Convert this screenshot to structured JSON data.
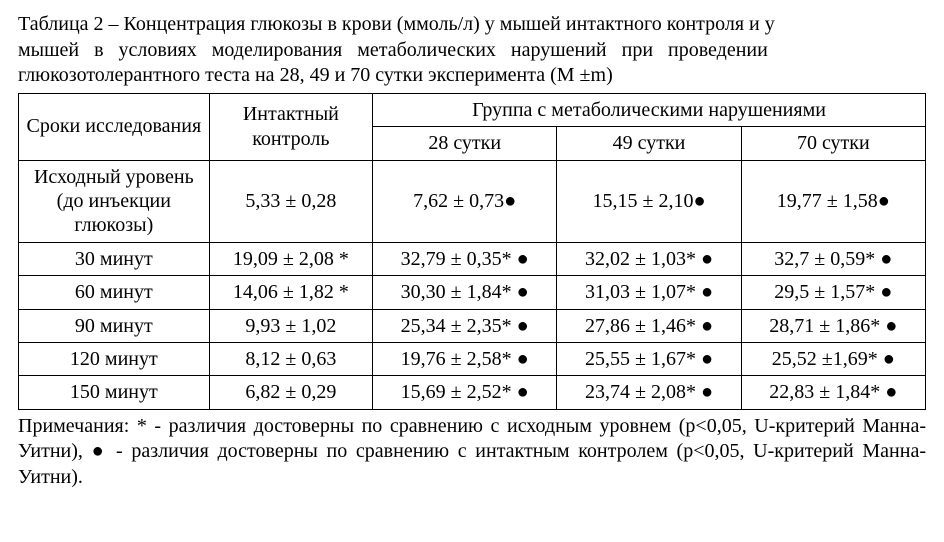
{
  "caption": {
    "part1": "Таблица 2 – Концентрация глюкозы в крови (ммоль/л) у мышей интактного контроля и у ",
    "part2": "мышей в условиях моделирования метаболических нарушений при проведении ",
    "part3": "глюкозотолерантного теста на 28, 49 и 70 сутки эксперимента (M ±m)"
  },
  "table": {
    "header": {
      "col_period": "Сроки исследования",
      "col_intact": "Интактный контроль",
      "col_group": "Группа с метаболическими нарушениями",
      "sub_28": "28 сутки",
      "sub_49": "49 сутки",
      "sub_70": "70 сутки"
    },
    "rows": [
      {
        "label": "Исходный уровень (до инъекции глюкозы)",
        "intact": "5,33 ± 0,28",
        "d28": "7,62 ± 0,73●",
        "d49": "15,15 ± 2,10●",
        "d70": "19,77 ± 1,58●"
      },
      {
        "label": "30 минут",
        "intact": "19,09 ± 2,08 *",
        "d28": "32,79 ± 0,35* ●",
        "d49": "32,02 ± 1,03* ●",
        "d70": "32,7 ± 0,59* ●"
      },
      {
        "label": "60 минут",
        "intact": "14,06 ± 1,82 *",
        "d28": "30,30 ± 1,84* ●",
        "d49": "31,03 ± 1,07* ●",
        "d70": "29,5 ± 1,57* ●"
      },
      {
        "label": "90 минут",
        "intact": "9,93 ± 1,02",
        "d28": "25,34 ± 2,35* ●",
        "d49": "27,86 ± 1,46* ●",
        "d70": "28,71 ± 1,86* ●"
      },
      {
        "label": "120 минут",
        "intact": "8,12 ± 0,63",
        "d28": "19,76 ± 2,58* ●",
        "d49": "25,55 ± 1,67* ●",
        "d70": "25,52 ±1,69* ●"
      },
      {
        "label": "150 минут",
        "intact": "6,82 ± 0,29",
        "d28": "15,69 ± 2,52* ●",
        "d49": "23,74 ± 2,08* ●",
        "d70": "22,83 ± 1,84* ●"
      }
    ]
  },
  "footnotes": "Примечания: * - различия достоверны по сравнению с исходным уровнем (p<0,05, U-критерий Манна-Уитни), ● - различия достоверны по сравнению с интактным контролем (p<0,05, U-критерий Манна-Уитни)."
}
